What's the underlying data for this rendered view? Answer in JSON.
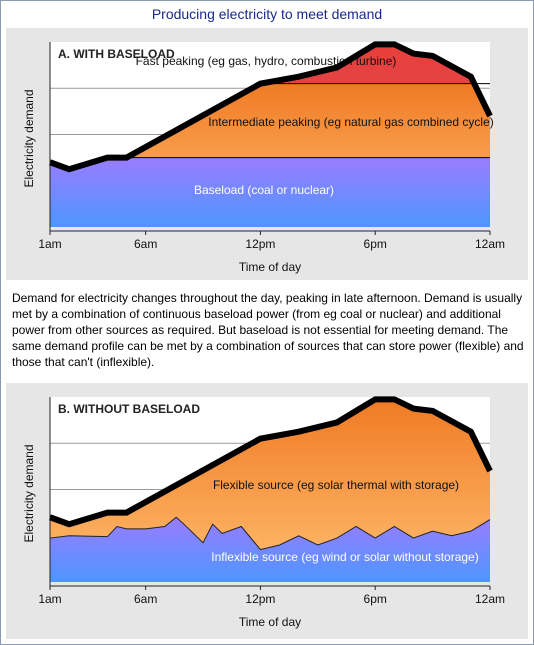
{
  "page": {
    "title": "Producing electricity to meet demand",
    "description": "Demand for electricity changes throughout the day, peaking in late afternoon. Demand is usually met by a combination of continuous baseload power (from eg coal or nuclear) and additional power from other sources as required. But baseload is not essential for meeting demand. The same demand profile can be met by a combination of sources that can store power (flexible) and those that can't (inflexible)."
  },
  "chart_data": [
    {
      "type": "area",
      "title": "A. WITH BASELOAD",
      "xlabel": "Time of day",
      "ylabel": "Electricity demand",
      "x_tick_labels": [
        "1am",
        "6am",
        "12pm",
        "6pm",
        "12am"
      ],
      "x_tick_hours": [
        1,
        6,
        12,
        18,
        24
      ],
      "xlim": [
        1,
        24
      ],
      "ylim": [
        0,
        4
      ],
      "grid": true,
      "demand": {
        "x": [
          1,
          2,
          4,
          5,
          12,
          14,
          16,
          17,
          18,
          19,
          20,
          21,
          23,
          24
        ],
        "y": [
          1.4,
          1.25,
          1.5,
          1.5,
          3.1,
          3.25,
          3.45,
          3.7,
          3.95,
          3.95,
          3.75,
          3.7,
          3.25,
          2.4
        ]
      },
      "series": [
        {
          "name": "Baseload (coal or nuclear)",
          "x": [
            1,
            24
          ],
          "y": [
            1.5,
            1.5
          ],
          "color_top": "#9a7cff",
          "color_bottom": "#4d96ff"
        },
        {
          "name": "Intermediate peaking (eg natural gas combined cycle)",
          "x": [
            1,
            2,
            4,
            5,
            12,
            14,
            24
          ],
          "y": [
            1.4,
            1.25,
            1.5,
            1.5,
            3.1,
            3.1,
            3.1
          ],
          "color_top": "#f07a24",
          "color_bottom": "#ffbf70"
        },
        {
          "name": "Fast peaking (eg gas, hydro, combustion turbine)",
          "color_top": "#e8403a",
          "color_bottom": "#d84a6a"
        }
      ]
    },
    {
      "type": "area",
      "title": "B. WITHOUT BASELOAD",
      "xlabel": "Time of day",
      "ylabel": "Electricity demand",
      "x_tick_labels": [
        "1am",
        "6am",
        "12pm",
        "6pm",
        "12am"
      ],
      "x_tick_hours": [
        1,
        6,
        12,
        18,
        24
      ],
      "xlim": [
        1,
        24
      ],
      "ylim": [
        0,
        4
      ],
      "grid": true,
      "demand": {
        "x": [
          1,
          2,
          4,
          5,
          12,
          14,
          16,
          17,
          18,
          19,
          20,
          21,
          23,
          24
        ],
        "y": [
          1.4,
          1.25,
          1.5,
          1.5,
          3.1,
          3.25,
          3.45,
          3.7,
          3.95,
          3.95,
          3.75,
          3.7,
          3.25,
          2.4
        ]
      },
      "series": [
        {
          "name": "Flexible source (eg solar thermal with storage)",
          "color_top": "#f07a24",
          "color_bottom": "#ffbf70"
        },
        {
          "name": "Inflexible source (eg wind or solar without storage)",
          "x": [
            1,
            2,
            4,
            4.5,
            5,
            6,
            7,
            7.6,
            8,
            9,
            9.5,
            10,
            11,
            12,
            13,
            14,
            15,
            16,
            17,
            18,
            19,
            20,
            21,
            22,
            23,
            24
          ],
          "y": [
            0.95,
            1.0,
            0.98,
            1.2,
            1.15,
            1.15,
            1.2,
            1.4,
            1.25,
            0.85,
            1.25,
            1.05,
            1.2,
            0.7,
            0.8,
            1.0,
            0.8,
            0.95,
            1.2,
            0.95,
            1.2,
            0.95,
            1.1,
            1.0,
            1.1,
            1.35
          ],
          "color_top": "#9a7cff",
          "color_bottom": "#4d96ff"
        }
      ]
    }
  ]
}
